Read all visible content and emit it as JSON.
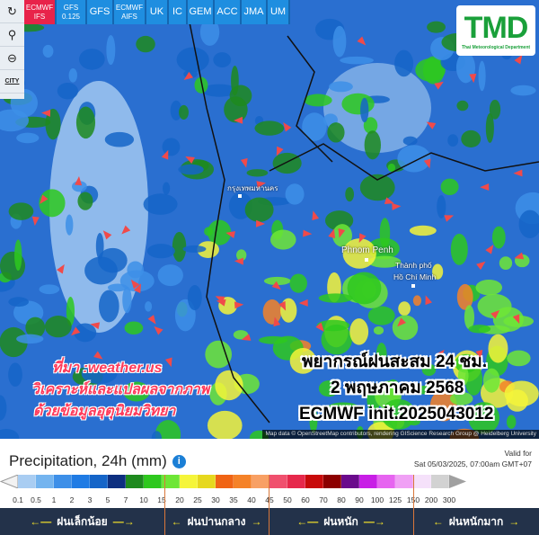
{
  "sidebar": {
    "items": [
      {
        "icon": "refresh-icon",
        "glyph": "↻"
      },
      {
        "icon": "location-pin-icon",
        "glyph": "⚲"
      },
      {
        "icon": "zoom-out-icon",
        "glyph": "⊖"
      },
      {
        "icon": "city-icon",
        "label": "CITY"
      }
    ]
  },
  "tabs": [
    {
      "label": "ECMWF IFS",
      "active": true
    },
    {
      "label": "GFS 0.125"
    },
    {
      "label": "GFS"
    },
    {
      "label": "ECMWF AIFS"
    },
    {
      "label": "UK"
    },
    {
      "label": "IC"
    },
    {
      "label": "GEM"
    },
    {
      "label": "ACC"
    },
    {
      "label": "JMA"
    },
    {
      "label": "UM"
    }
  ],
  "logo": {
    "text": "TMD",
    "subtitle": "Thai Meteorological Department"
  },
  "map": {
    "places": {
      "bangkok": "กรุงเทพมหานคร",
      "phnom_penh": "Phnom Penh",
      "hcmc_1": "Thành phố",
      "hcmc_2": "Hồ Chí Minh"
    },
    "source_lines": [
      "ที่มา :weather.us",
      "วิเคราะห์และแปลผลจากภาพ",
      "ด้วยข้อมูลอุตุนิยมวิทยา"
    ],
    "title_lines": [
      "พยากรณ์ฝนสะสม 24 ชม.",
      "2 พฤษภาคม 2568",
      "ECMWF init.2025043012"
    ],
    "attribution": "Map data © OpenStreetMap contributors, rendering GIScience Research Group @ Heidelberg University"
  },
  "legend": {
    "title": "Precipitation, 24h (mm)",
    "info_icon": "i",
    "valid_label": "Valid for",
    "valid_time": "Sat 05/03/2025, 07:00am GMT+07",
    "ticks": [
      "0.1",
      "0.5",
      "1",
      "2",
      "3",
      "5",
      "7",
      "10",
      "15",
      "20",
      "25",
      "30",
      "35",
      "40",
      "45",
      "50",
      "60",
      "70",
      "80",
      "90",
      "100",
      "125",
      "150",
      "200",
      "300"
    ],
    "colors": [
      "#a9cdf2",
      "#74b4ef",
      "#3d8fe8",
      "#1f7be4",
      "#1565c8",
      "#0d2f80",
      "#1e8a1e",
      "#2ec81e",
      "#6ee636",
      "#f5f53a",
      "#e6d81e",
      "#f06414",
      "#f58228",
      "#f8a064",
      "#f0506e",
      "#e6284b",
      "#c80a0a",
      "#8c0000",
      "#6a0a8c",
      "#c81ee6",
      "#e664f0",
      "#f0a0f5",
      "#f5e1fa",
      "#d2d2d2"
    ],
    "categories": [
      {
        "label": "ฝนเล็กน้อย"
      },
      {
        "label": "ฝนปานกลาง"
      },
      {
        "label": "ฝนหนัก"
      },
      {
        "label": "ฝนหนักมาก"
      }
    ]
  }
}
